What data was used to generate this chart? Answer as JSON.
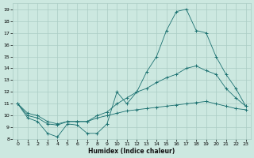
{
  "xlabel": "Humidex (Indice chaleur)",
  "line_color": "#1a7070",
  "bg_color": "#cce8e0",
  "grid_color": "#aaccc4",
  "ylim": [
    8,
    19.5
  ],
  "yticks": [
    8,
    9,
    10,
    11,
    12,
    13,
    14,
    15,
    16,
    17,
    18,
    19
  ],
  "xlim": [
    -0.5,
    23.5
  ],
  "xticks": [
    0,
    1,
    2,
    3,
    4,
    5,
    6,
    7,
    8,
    9,
    10,
    11,
    12,
    13,
    14,
    15,
    16,
    17,
    18,
    19,
    20,
    21,
    22,
    23
  ],
  "line1_y": [
    11.0,
    9.8,
    9.5,
    8.5,
    8.2,
    9.3,
    9.2,
    8.5,
    8.5,
    9.3,
    12.0,
    11.0,
    12.0,
    13.7,
    15.0,
    17.2,
    18.8,
    19.0,
    17.2,
    17.0,
    15.0,
    13.5,
    12.3,
    10.8
  ],
  "line2_y": [
    11.0,
    10.0,
    9.8,
    9.3,
    9.2,
    9.5,
    9.5,
    9.5,
    10.0,
    10.3,
    11.0,
    11.5,
    12.0,
    12.3,
    12.8,
    13.2,
    13.5,
    14.0,
    14.2,
    13.8,
    13.5,
    12.3,
    11.5,
    10.8
  ],
  "line3_y": [
    11.0,
    10.2,
    10.0,
    9.5,
    9.3,
    9.5,
    9.5,
    9.5,
    9.8,
    10.0,
    10.2,
    10.4,
    10.5,
    10.6,
    10.7,
    10.8,
    10.9,
    11.0,
    11.1,
    11.2,
    11.0,
    10.8,
    10.6,
    10.5
  ]
}
